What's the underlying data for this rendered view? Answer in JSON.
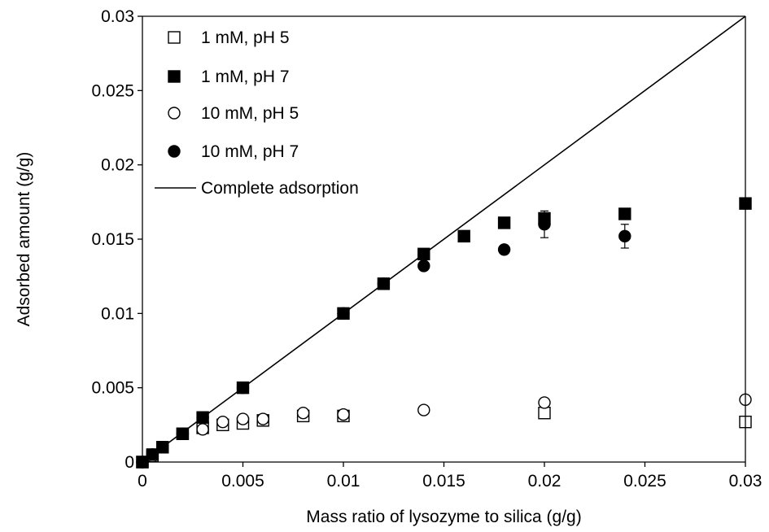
{
  "chart_data": {
    "type": "scatter",
    "xlabel": "Mass ratio of lysozyme to silica (g/g)",
    "ylabel": "Adsorbed amount (g/g)",
    "xlim": [
      0,
      0.03
    ],
    "ylim": [
      0,
      0.03
    ],
    "x_ticks": [
      "0",
      "0.005",
      "0.01",
      "0.015",
      "0.02",
      "0.025",
      "0.03"
    ],
    "y_ticks": [
      "0",
      "0.005",
      "0.01",
      "0.015",
      "0.02",
      "0.025",
      "0.03"
    ],
    "grid": false,
    "legend_position": "top-left",
    "series": [
      {
        "name": "1 mM, pH 5",
        "marker": "square-open",
        "points": [
          {
            "x": 0.0,
            "y": 0.0
          },
          {
            "x": 0.0005,
            "y": 0.0004
          },
          {
            "x": 0.001,
            "y": 0.001
          },
          {
            "x": 0.002,
            "y": 0.0019
          },
          {
            "x": 0.003,
            "y": 0.0023
          },
          {
            "x": 0.004,
            "y": 0.0025
          },
          {
            "x": 0.005,
            "y": 0.0026
          },
          {
            "x": 0.006,
            "y": 0.0028
          },
          {
            "x": 0.008,
            "y": 0.0031
          },
          {
            "x": 0.01,
            "y": 0.0031
          },
          {
            "x": 0.02,
            "y": 0.0033
          },
          {
            "x": 0.03,
            "y": 0.0027
          }
        ]
      },
      {
        "name": "1 mM, pH 7",
        "marker": "square-filled",
        "points": [
          {
            "x": 0.0,
            "y": 0.0
          },
          {
            "x": 0.0005,
            "y": 0.0005
          },
          {
            "x": 0.001,
            "y": 0.001
          },
          {
            "x": 0.002,
            "y": 0.0019
          },
          {
            "x": 0.003,
            "y": 0.003
          },
          {
            "x": 0.005,
            "y": 0.005
          },
          {
            "x": 0.01,
            "y": 0.01
          },
          {
            "x": 0.012,
            "y": 0.012
          },
          {
            "x": 0.014,
            "y": 0.014
          },
          {
            "x": 0.016,
            "y": 0.0152
          },
          {
            "x": 0.018,
            "y": 0.0161
          },
          {
            "x": 0.02,
            "y": 0.0164
          },
          {
            "x": 0.024,
            "y": 0.0167
          },
          {
            "x": 0.03,
            "y": 0.0174
          }
        ]
      },
      {
        "name": "10 mM, pH 5",
        "marker": "circle-open",
        "points": [
          {
            "x": 0.0,
            "y": 0.0
          },
          {
            "x": 0.0005,
            "y": 0.0004
          },
          {
            "x": 0.001,
            "y": 0.001
          },
          {
            "x": 0.002,
            "y": 0.0019
          },
          {
            "x": 0.003,
            "y": 0.0022
          },
          {
            "x": 0.004,
            "y": 0.0027
          },
          {
            "x": 0.005,
            "y": 0.0029
          },
          {
            "x": 0.006,
            "y": 0.0029
          },
          {
            "x": 0.008,
            "y": 0.0033
          },
          {
            "x": 0.01,
            "y": 0.0032
          },
          {
            "x": 0.014,
            "y": 0.0035
          },
          {
            "x": 0.02,
            "y": 0.004
          },
          {
            "x": 0.03,
            "y": 0.0042
          }
        ]
      },
      {
        "name": "10 mM, pH 7",
        "marker": "circle-filled",
        "points": [
          {
            "x": 0.0,
            "y": 0.0
          },
          {
            "x": 0.0005,
            "y": 0.0005
          },
          {
            "x": 0.001,
            "y": 0.001
          },
          {
            "x": 0.002,
            "y": 0.0019
          },
          {
            "x": 0.003,
            "y": 0.003
          },
          {
            "x": 0.005,
            "y": 0.005
          },
          {
            "x": 0.01,
            "y": 0.01
          },
          {
            "x": 0.012,
            "y": 0.012
          },
          {
            "x": 0.014,
            "y": 0.0132
          },
          {
            "x": 0.018,
            "y": 0.0143
          },
          {
            "x": 0.02,
            "y": 0.016,
            "err": 0.0009
          },
          {
            "x": 0.024,
            "y": 0.0152,
            "err": 0.0008
          }
        ]
      }
    ],
    "reference_line": {
      "name": "Complete adsorption",
      "points": [
        {
          "x": 0.0,
          "y": 0.0
        },
        {
          "x": 0.03,
          "y": 0.03
        }
      ]
    },
    "colors": {
      "marker": "#000000",
      "background": "#ffffff"
    }
  }
}
